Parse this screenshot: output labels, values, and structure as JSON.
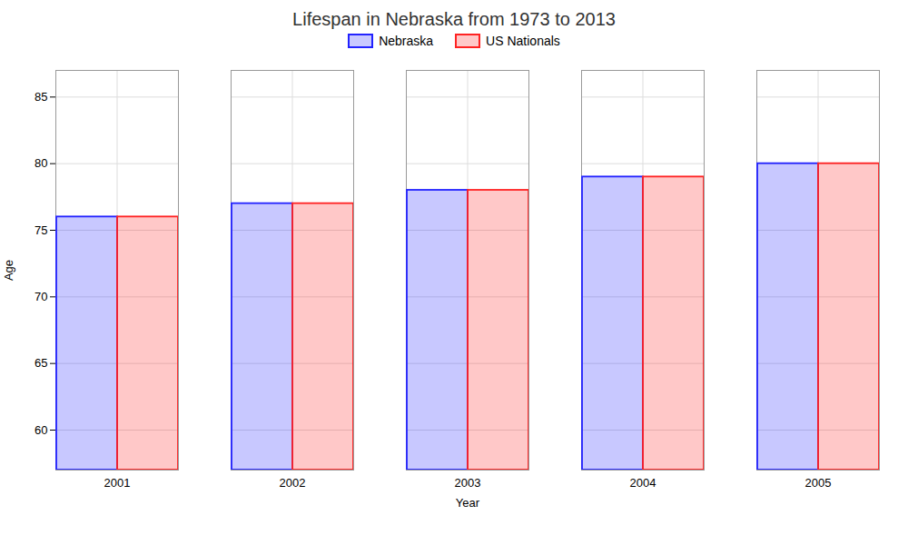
{
  "chart_data": {
    "type": "bar",
    "title": "Lifespan in Nebraska from 1973 to 2013",
    "xlabel": "Year",
    "ylabel": "Age",
    "categories": [
      "2001",
      "2002",
      "2003",
      "2004",
      "2005"
    ],
    "series": [
      {
        "name": "Nebraska",
        "color": "#2222ff",
        "values": [
          76,
          77,
          78,
          79,
          80
        ]
      },
      {
        "name": "US Nationals",
        "color": "#ff2222",
        "values": [
          76,
          77,
          78,
          79,
          80
        ]
      }
    ],
    "ylim": [
      57,
      87
    ],
    "yticks": [
      60,
      65,
      70,
      75,
      80,
      85
    ],
    "grid": true,
    "legend": "top"
  }
}
